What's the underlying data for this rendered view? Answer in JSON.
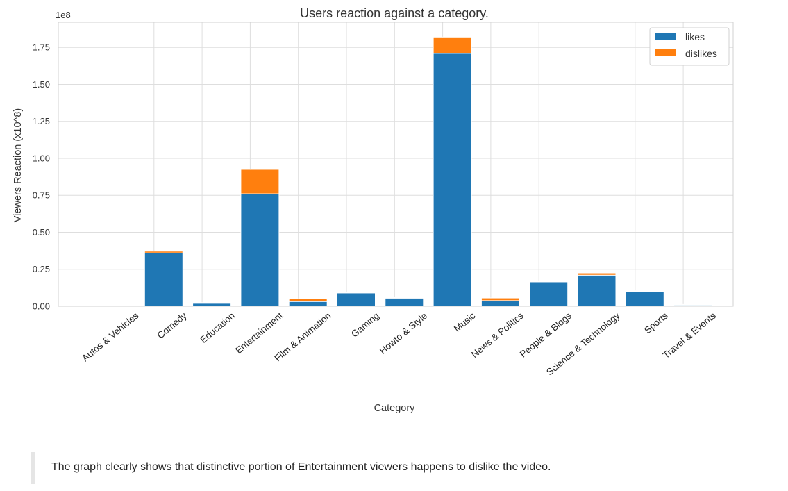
{
  "chart_data": {
    "type": "bar",
    "stacked": true,
    "title": "Users reaction against a category.",
    "xlabel": "Category",
    "ylabel": "Viewers Reaction (x10^8)",
    "offset_text": "1e8",
    "ylim": [
      0,
      1.92
    ],
    "yticks": [
      "0.00",
      "0.25",
      "0.50",
      "0.75",
      "1.00",
      "1.25",
      "1.50",
      "1.75"
    ],
    "grid": true,
    "legend_position": "top-right",
    "categories": [
      "Autos & Vehicles",
      "Comedy",
      "Education",
      "Entertainment",
      "Film & Animation",
      "Gaming",
      "Howto & Style",
      "Music",
      "News & Politics",
      "People & Blogs",
      "Science & Technology",
      "Sports",
      "Travel & Events"
    ],
    "series": [
      {
        "name": "likes",
        "color": "#1f77b4",
        "values": [
          0.001,
          0.36,
          0.02,
          0.76,
          0.032,
          0.09,
          0.055,
          1.71,
          0.038,
          0.165,
          0.21,
          0.1,
          0.008
        ]
      },
      {
        "name": "dislikes",
        "color": "#ff7f0e",
        "values": [
          0.0,
          0.012,
          0.001,
          0.165,
          0.018,
          0.003,
          0.002,
          0.11,
          0.018,
          0.004,
          0.015,
          0.004,
          0.001
        ]
      }
    ]
  },
  "note": {
    "text": "The graph clearly shows that distinctive portion of Entertainment viewers happens to dislike the video."
  }
}
